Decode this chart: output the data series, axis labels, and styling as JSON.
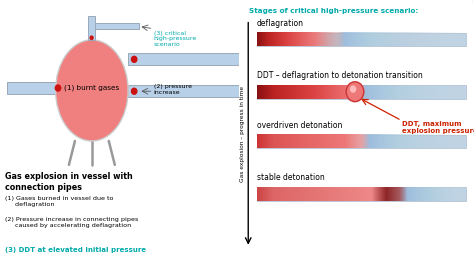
{
  "teal": "#00aaaa",
  "red_dark": "#cc2200",
  "bg_color": "#ffffff",
  "title_right": "Stages of critical high-pressure scenario:",
  "bar_labels": [
    "deflagration",
    "DDT – deflagration to detonation transition",
    "overdriven detonation",
    "stable detonation"
  ],
  "left_title": "Gas explosion in vessel with\nconnection pipes",
  "left_item1": "(1) Gases burned in vessel due to\n     deflagration",
  "left_item2": "(2) Pressure increase in connecting pipes\n     caused by accelerating deflagration",
  "left_item3": "(3) DDT at elevated initial pressure",
  "yaxis_label": "Gas explosion – progress in time",
  "ddt_label": "DDT, maximum\nexplosion pressure!",
  "vessel_color": "#f08080",
  "pipe_color": "#b8d0e8",
  "pipe_edge": "#9aaabb",
  "label1": "(1) burnt gases",
  "label2": "(2) pressure\nincrease",
  "label3": "(3) critical\nhigh-pressure\nscenario"
}
